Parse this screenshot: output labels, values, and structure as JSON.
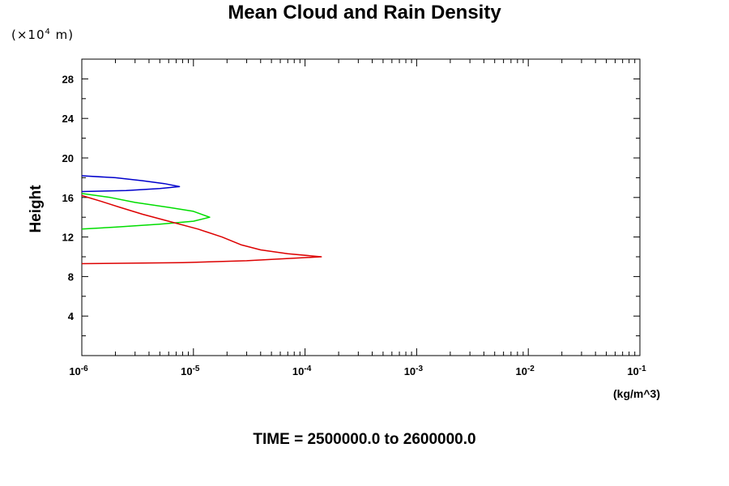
{
  "page": {
    "title": "Mean Cloud and Rain Density",
    "height_unit_base": "(×10",
    "height_unit_exp": "4",
    "height_unit_rest": " m)",
    "footer": "TIME = 2500000.0 to 2600000.0"
  },
  "chart_data": {
    "type": "line",
    "title": "Mean Cloud and Rain Density",
    "xlabel": "(kg/m^3)",
    "ylabel": "Height",
    "x_scale": "log",
    "xlim": [
      1e-06,
      0.1
    ],
    "ylim": [
      0,
      30
    ],
    "grid": false,
    "x_ticks": [
      {
        "value": 1e-06,
        "base": "10",
        "exp": "-6"
      },
      {
        "value": 1e-05,
        "base": "10",
        "exp": "-5"
      },
      {
        "value": 0.0001,
        "base": "10",
        "exp": "-4"
      },
      {
        "value": 0.001,
        "base": "10",
        "exp": "-3"
      },
      {
        "value": 0.01,
        "base": "10",
        "exp": "-2"
      },
      {
        "value": 0.1,
        "base": "10",
        "exp": "-1"
      }
    ],
    "y_ticks": [
      4,
      8,
      12,
      16,
      20,
      24,
      28
    ],
    "series": [
      {
        "color": "#0000cc",
        "points": [
          [
            1e-06,
            18.2
          ],
          [
            2e-06,
            18.0
          ],
          [
            3.5e-06,
            17.7
          ],
          [
            5.5e-06,
            17.4
          ],
          [
            7.5e-06,
            17.1
          ],
          [
            5e-06,
            16.9
          ],
          [
            2.5e-06,
            16.7
          ],
          [
            1e-06,
            16.6
          ]
        ]
      },
      {
        "color": "#00dd00",
        "points": [
          [
            1e-06,
            16.4
          ],
          [
            1.8e-06,
            16.0
          ],
          [
            3e-06,
            15.5
          ],
          [
            6e-06,
            15.0
          ],
          [
            1e-05,
            14.6
          ],
          [
            1.4e-05,
            14.0
          ],
          [
            1e-05,
            13.6
          ],
          [
            5e-06,
            13.3
          ],
          [
            2e-06,
            13.0
          ],
          [
            1e-06,
            12.8
          ]
        ]
      },
      {
        "color": "#dd0000",
        "points": [
          [
            1e-06,
            16.2
          ],
          [
            1.5e-06,
            15.6
          ],
          [
            2.2e-06,
            15.0
          ],
          [
            3.5e-06,
            14.3
          ],
          [
            6e-06,
            13.6
          ],
          [
            1.1e-05,
            12.8
          ],
          [
            1.8e-05,
            12.0
          ],
          [
            2.7e-05,
            11.2
          ],
          [
            4e-05,
            10.7
          ],
          [
            7e-05,
            10.3
          ],
          [
            0.00014,
            10.0
          ],
          [
            3e-05,
            9.6
          ],
          [
            8e-06,
            9.4
          ],
          [
            1e-06,
            9.3
          ]
        ]
      }
    ]
  }
}
